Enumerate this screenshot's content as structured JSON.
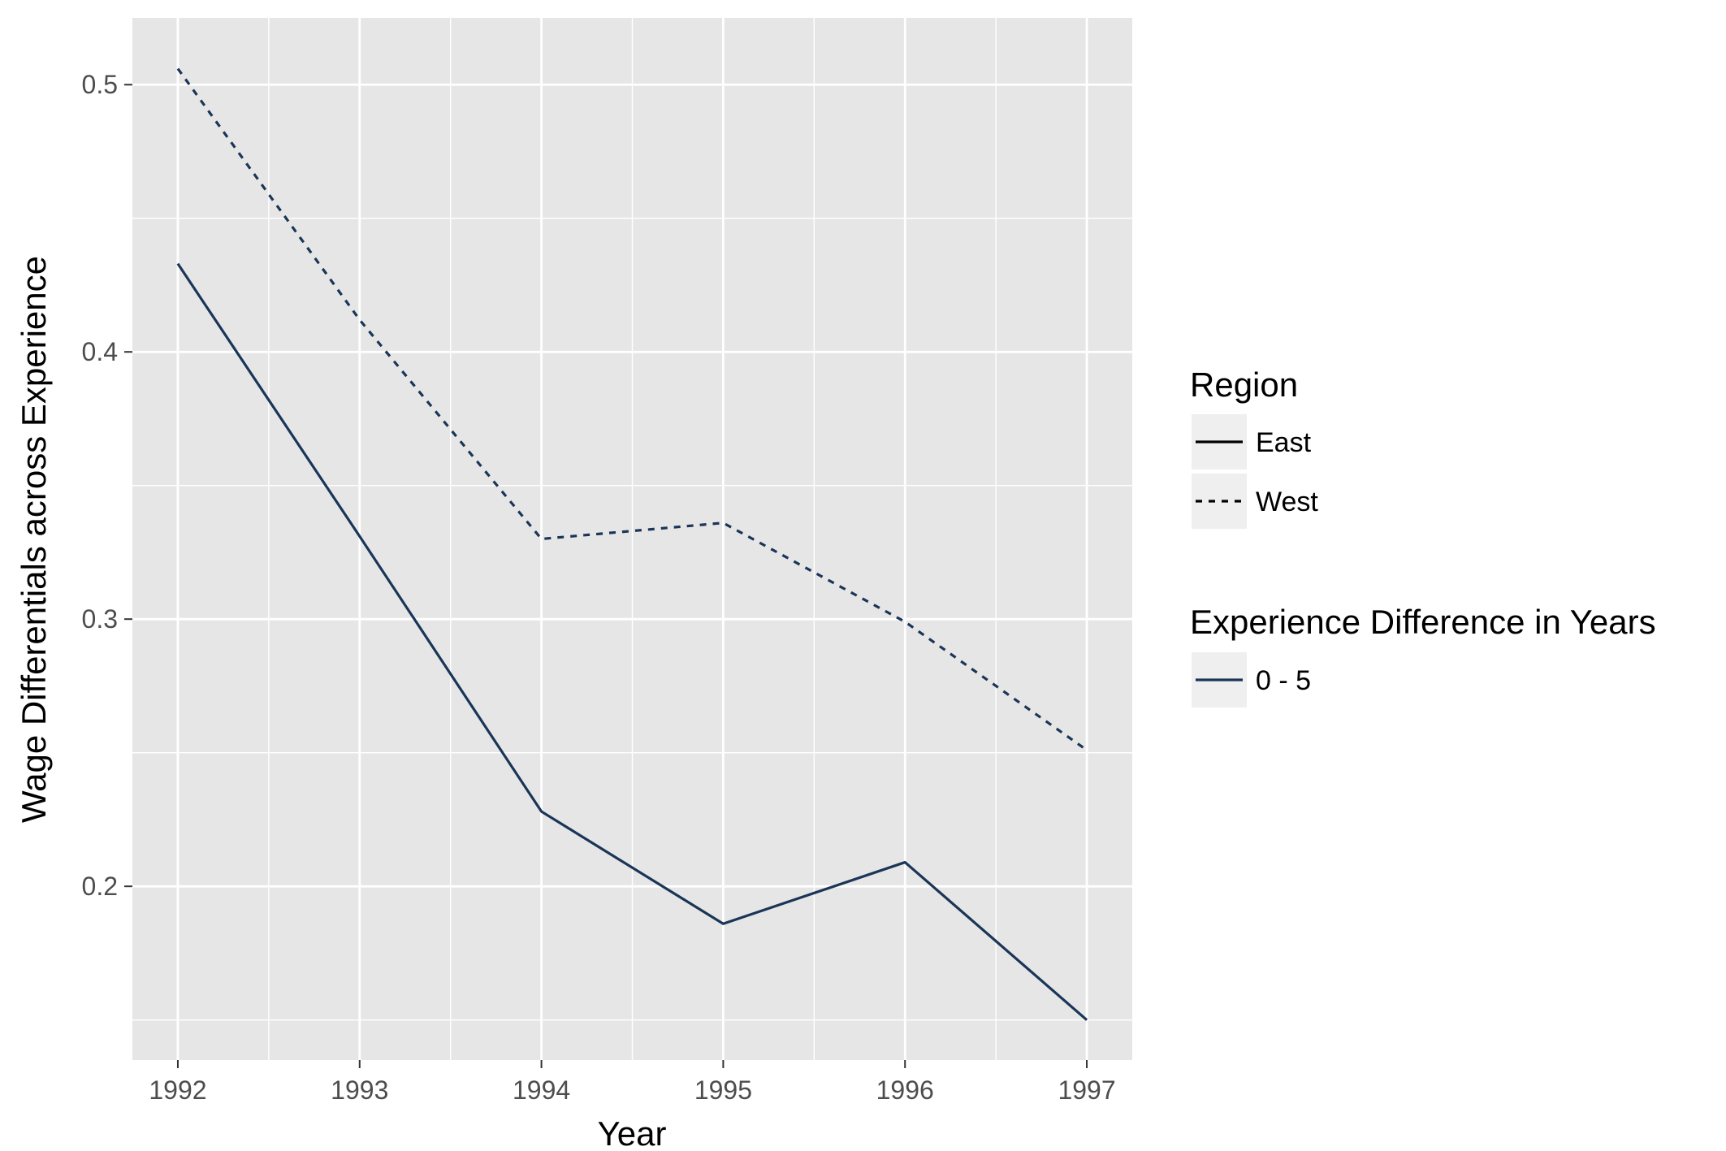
{
  "chart_data": {
    "type": "line",
    "xlabel": "Year",
    "ylabel": "Wage Differentials across Experience",
    "x": [
      1992,
      1993,
      1994,
      1995,
      1996,
      1997
    ],
    "x_ticks": [
      "1992",
      "1993",
      "1994",
      "1995",
      "1996",
      "1997"
    ],
    "y_ticks": [
      "0.2",
      "0.3",
      "0.4",
      "0.5"
    ],
    "xlim": [
      1991.75,
      1997.25
    ],
    "ylim": [
      0.135,
      0.525
    ],
    "grid": true,
    "legend_position": "right",
    "series": [
      {
        "name": "East",
        "group": "0 - 5",
        "linetype": "solid",
        "values": [
          0.433,
          0.331,
          0.228,
          0.186,
          0.209,
          0.15
        ]
      },
      {
        "name": "West",
        "group": "0 - 5",
        "linetype": "dashed",
        "values": [
          0.506,
          0.412,
          0.33,
          0.336,
          0.299,
          0.251
        ]
      }
    ],
    "legend": {
      "region_title": "Region",
      "region_items": [
        {
          "label": "East",
          "linetype": "solid"
        },
        {
          "label": "West",
          "linetype": "dashed"
        }
      ],
      "experience_title": "Experience Difference in Years",
      "experience_items": [
        {
          "label": "0 - 5"
        }
      ]
    },
    "colors": {
      "line": "#1a3557",
      "panel": "#e6e6e6",
      "grid": "#ffffff",
      "legend_key": "#efefef"
    }
  }
}
